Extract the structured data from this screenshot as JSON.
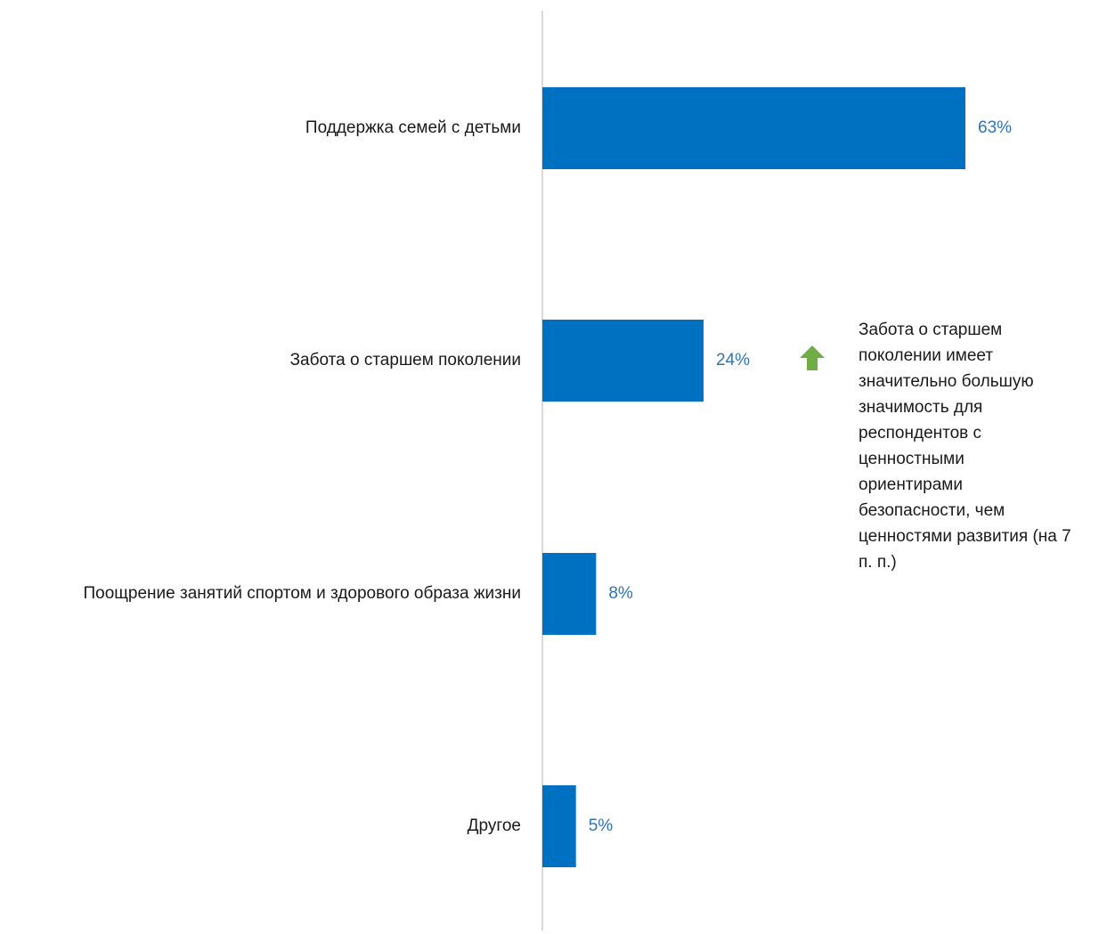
{
  "chart_data": {
    "type": "bar",
    "orientation": "horizontal",
    "categories": [
      "Поддержка семей с детьми",
      "Забота о старшем поколении",
      "Поощрение занятий спортом и здорового образа жизни",
      "Другое"
    ],
    "values": [
      63,
      24,
      8,
      5
    ],
    "value_labels": [
      "63%",
      "24%",
      "8%",
      "5%"
    ],
    "unit": "%",
    "title": "",
    "xlabel": "",
    "ylabel": "",
    "xlim": [
      0,
      100
    ],
    "grid": false,
    "legend": "none",
    "colors": {
      "bar": "#0070c0",
      "value_label": "#2e75b6",
      "axis": "#d9d9d9",
      "arrow": "#70ad47"
    },
    "annotation": {
      "icon": "arrow-up-icon",
      "category": "Забота о старшем поколении",
      "text": "Забота о старшем\nпоколении имеет\nзначительно большую\nзначимость для\nреспондентов с\nценностными\nориентирами\nбезопасности, чем\nценностями развития (на 7\nп. п.)"
    }
  }
}
